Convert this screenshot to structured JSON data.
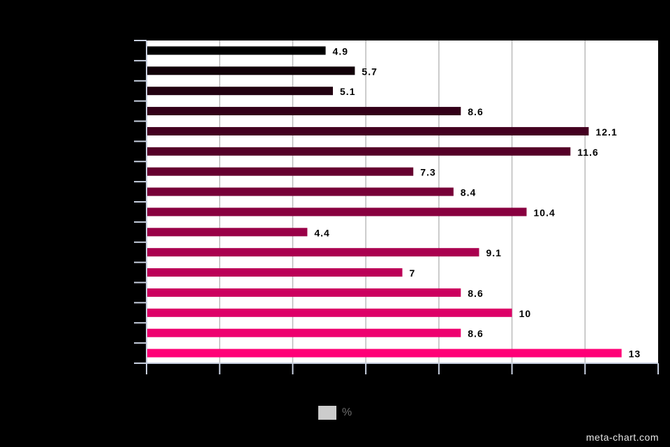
{
  "chart_data": {
    "type": "bar",
    "orientation": "horizontal",
    "title": "",
    "xlabel": "",
    "ylabel": "",
    "xlim": [
      0,
      14
    ],
    "x_tick_step": 2,
    "grid": true,
    "legend_position": "bottom-center",
    "categories": [
      "",
      "",
      "",
      "",
      "",
      "",
      "",
      "",
      "",
      "",
      "",
      "",
      "",
      "",
      "",
      ""
    ],
    "series": [
      {
        "name": "%",
        "values": [
          4.9,
          5.7,
          5.1,
          8.6,
          12.1,
          11.6,
          7.3,
          8.4,
          10.4,
          4.4,
          9.1,
          7,
          8.6,
          10,
          8.6,
          13
        ],
        "value_labels": [
          "4.9",
          "5.7",
          "5.1",
          "8.6",
          "12.1",
          "11.6",
          "7.3",
          "8.4",
          "10.4",
          "4.4",
          "9.1",
          "7",
          "8.6",
          "10",
          "8.6",
          "13"
        ]
      }
    ],
    "colors": {
      "gradient_start": "#000000",
      "gradient_end": "#ff0077",
      "plot_background": "#ffffff",
      "page_background": "#000000",
      "gridline": "#bbbbbb",
      "axis": "#c8d0e0"
    }
  },
  "legend": {
    "label": "%",
    "swatch_color": "#cccccc"
  },
  "watermark": "meta-chart.com"
}
